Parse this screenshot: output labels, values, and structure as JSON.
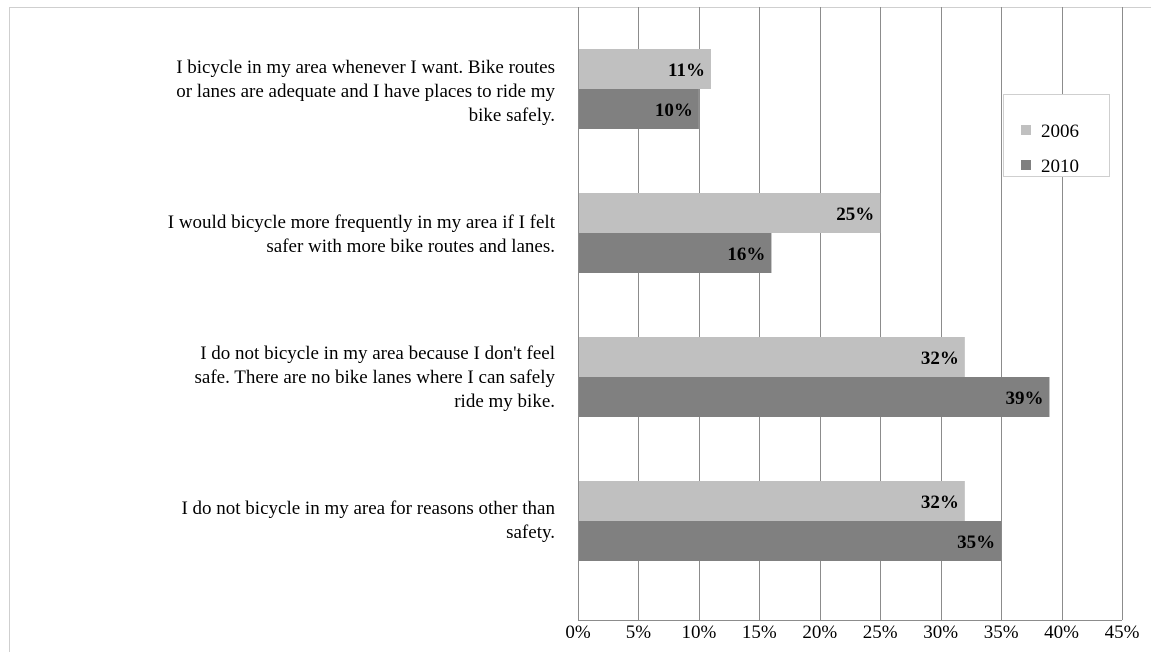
{
  "chart_data": {
    "type": "bar",
    "orientation": "horizontal",
    "categories": [
      "I bicycle in my area whenever I want.  Bike routes or lanes are adequate and I have places to ride my bike safely.",
      "I would bicycle more frequently in my area if I felt safer with more bike routes and lanes.",
      "I do not bicycle in my area because I don't feel safe.  There are no bike lanes where I can safely ride my bike.",
      "I do not bicycle in my area for reasons other than safety."
    ],
    "category_lines": [
      [
        "I bicycle in my area whenever I want.  Bike routes",
        "or lanes are adequate and I have places to ride my",
        "bike safely."
      ],
      [
        "I would bicycle more frequently in my area if I felt",
        "safer with more bike routes and lanes."
      ],
      [
        "I do not bicycle in my area because I don't feel",
        "safe.  There are no bike lanes where I can safely",
        "ride my bike."
      ],
      [
        "I do not bicycle in my area for reasons other than",
        "safety."
      ]
    ],
    "series": [
      {
        "name": "2006",
        "values": [
          11,
          25,
          32,
          32
        ],
        "labels": [
          "11%",
          "25%",
          "32%",
          "32%"
        ],
        "color": "#c0c0c0"
      },
      {
        "name": "2010",
        "values": [
          10,
          16,
          39,
          35
        ],
        "labels": [
          "10%",
          "16%",
          "39%",
          "35%"
        ],
        "color": "#808080"
      }
    ],
    "xlim": [
      0,
      45
    ],
    "xticks": [
      0,
      5,
      10,
      15,
      20,
      25,
      30,
      35,
      40,
      45
    ],
    "xtick_labels": [
      "0%",
      "5%",
      "10%",
      "15%",
      "20%",
      "25%",
      "30%",
      "35%",
      "40%",
      "45%"
    ],
    "grid": true,
    "legend_position": "top-right",
    "title": "",
    "xlabel": "",
    "ylabel": ""
  }
}
